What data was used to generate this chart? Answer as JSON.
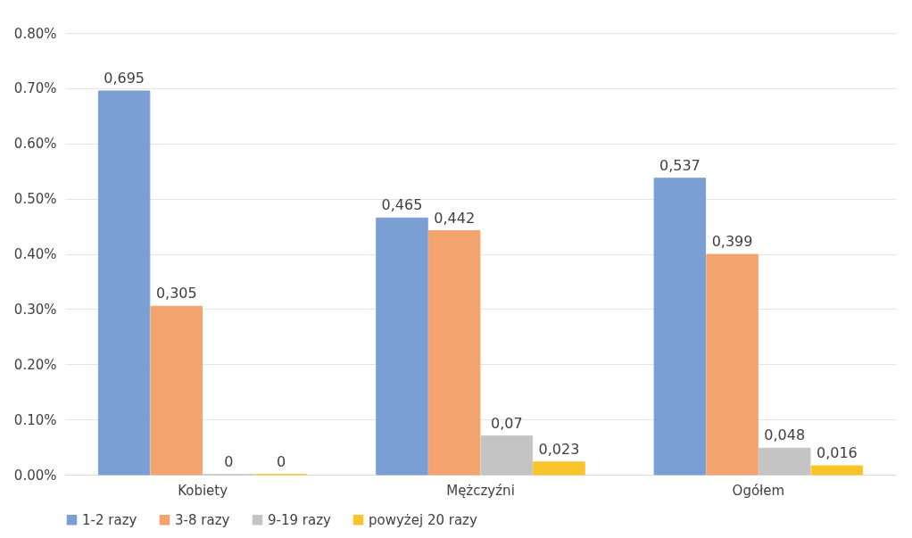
{
  "chart_data": {
    "type": "bar",
    "categories": [
      "Kobiety",
      "Mężczyźni",
      "Ogółem"
    ],
    "series": [
      {
        "name": "1-2 razy",
        "color": "#7b9fd4",
        "values": [
          0.695,
          0.465,
          0.537
        ],
        "value_labels": [
          "0,695",
          "0,465",
          "0,537"
        ]
      },
      {
        "name": "3-8 razy",
        "color": "#f2a36e",
        "values": [
          0.305,
          0.442,
          0.399
        ],
        "value_labels": [
          "0,305",
          "0,442",
          "0,399"
        ]
      },
      {
        "name": "9-19 razy",
        "color": "#c4c4c4",
        "values": [
          0,
          0.07,
          0.048
        ],
        "value_labels": [
          "0",
          "0,07",
          "0,048"
        ]
      },
      {
        "name": "powyżej 20 razy",
        "color": "#f7c52a",
        "values": [
          0,
          0.023,
          0.016
        ],
        "value_labels": [
          "0",
          "0,023",
          "0,016"
        ]
      }
    ],
    "ylim": [
      0,
      0.8
    ],
    "yticks": [
      {
        "value": 0,
        "label": "0.00%"
      },
      {
        "value": 0.1,
        "label": "0.10%"
      },
      {
        "value": 0.2,
        "label": "0.20%"
      },
      {
        "value": 0.3,
        "label": "0.30%"
      },
      {
        "value": 0.4,
        "label": "0.40%"
      },
      {
        "value": 0.5,
        "label": "0.50%"
      },
      {
        "value": 0.6,
        "label": "0.60%"
      },
      {
        "value": 0.7,
        "label": "0.70%"
      },
      {
        "value": 0.8,
        "label": "0.80%"
      }
    ],
    "grid": "y",
    "legend": "bottom"
  }
}
